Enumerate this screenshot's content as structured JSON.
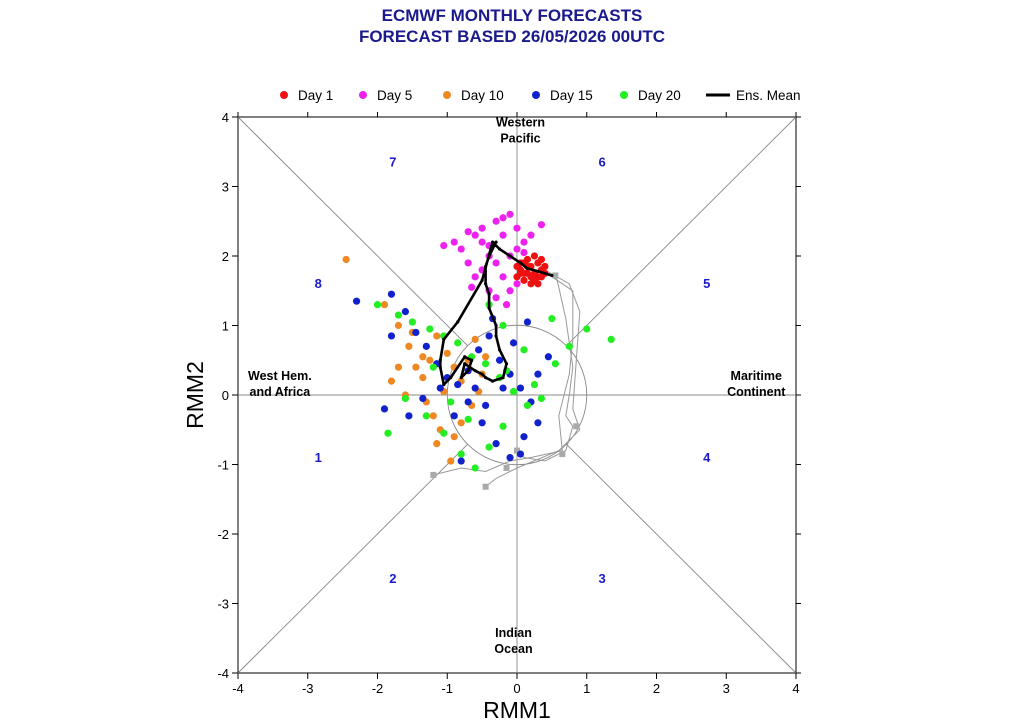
{
  "title_line1": "ECMWF MONTHLY FORECASTS",
  "title_line2": "FORECAST  BASED 26/05/2026 00UTC",
  "chart_data": {
    "type": "scatter",
    "xlabel": "RMM1",
    "ylabel": "RMM2",
    "xlim": [
      -4,
      4
    ],
    "ylim": [
      -4,
      4
    ],
    "xticks": [
      -4,
      -3,
      -2,
      -1,
      0,
      1,
      2,
      3,
      4
    ],
    "yticks": [
      -4,
      -3,
      -2,
      -1,
      0,
      1,
      2,
      3,
      4
    ],
    "phase_numbers": [
      {
        "label": "1",
        "x": -2.85,
        "y": -0.89
      },
      {
        "label": "2",
        "x": -1.78,
        "y": -2.63
      },
      {
        "label": "3",
        "x": 1.22,
        "y": -2.63
      },
      {
        "label": "4",
        "x": 2.72,
        "y": -0.89
      },
      {
        "label": "5",
        "x": 2.72,
        "y": 1.61
      },
      {
        "label": "6",
        "x": 1.22,
        "y": 3.36
      },
      {
        "label": "7",
        "x": -1.78,
        "y": 3.36
      },
      {
        "label": "8",
        "x": -2.85,
        "y": 1.61
      }
    ],
    "region_labels": [
      {
        "lines": [
          "Western",
          "Pacific"
        ],
        "x": 0.05,
        "y": 3.75
      },
      {
        "lines": [
          "Indian",
          "Ocean"
        ],
        "x": -0.05,
        "y": -3.6
      },
      {
        "lines": [
          "West Hem.",
          "and Africa"
        ],
        "x": -3.4,
        "y": 0.1
      },
      {
        "lines": [
          "Maritime",
          "Continent"
        ],
        "x": 3.43,
        "y": 0.1
      }
    ],
    "legend_position": "top",
    "legend": [
      {
        "name": "Day 1",
        "color": "#ee1111",
        "kind": "dot"
      },
      {
        "name": "Day 5",
        "color": "#ee22ee",
        "kind": "dot"
      },
      {
        "name": "Day 10",
        "color": "#ee8822",
        "kind": "dot"
      },
      {
        "name": "Day 15",
        "color": "#1122cc",
        "kind": "dot"
      },
      {
        "name": "Day 20",
        "color": "#22ee22",
        "kind": "dot"
      },
      {
        "name": "Ens. Mean",
        "color": "#000000",
        "kind": "line"
      }
    ],
    "series": [
      {
        "key": "day1",
        "color": "#ee1111",
        "points": [
          [
            0.0,
            1.7
          ],
          [
            0.05,
            1.8
          ],
          [
            0.1,
            1.9
          ],
          [
            0.15,
            1.75
          ],
          [
            0.2,
            1.85
          ],
          [
            0.25,
            2.0
          ],
          [
            0.3,
            1.9
          ],
          [
            0.35,
            1.8
          ],
          [
            0.1,
            1.65
          ],
          [
            0.2,
            1.6
          ],
          [
            0.3,
            1.7
          ],
          [
            0.4,
            1.75
          ],
          [
            0.15,
            1.95
          ],
          [
            0.25,
            1.75
          ],
          [
            0.05,
            1.9
          ],
          [
            0.35,
            1.95
          ],
          [
            0.2,
            1.7
          ],
          [
            0.0,
            1.85
          ],
          [
            0.1,
            1.75
          ],
          [
            0.3,
            1.6
          ],
          [
            0.4,
            1.85
          ],
          [
            0.25,
            1.65
          ],
          [
            0.15,
            1.85
          ],
          [
            0.35,
            1.7
          ],
          [
            0.05,
            1.75
          ]
        ]
      },
      {
        "key": "day5",
        "color": "#ee22ee",
        "points": [
          [
            -0.8,
            2.1
          ],
          [
            -0.6,
            2.3
          ],
          [
            -0.5,
            2.2
          ],
          [
            -0.3,
            2.5
          ],
          [
            -0.1,
            2.6
          ],
          [
            0.0,
            2.4
          ],
          [
            -0.2,
            2.3
          ],
          [
            -0.4,
            2.0
          ],
          [
            -0.7,
            1.9
          ],
          [
            -0.6,
            1.7
          ],
          [
            -0.5,
            1.8
          ],
          [
            -0.3,
            1.9
          ],
          [
            -0.1,
            2.0
          ],
          [
            0.1,
            2.2
          ],
          [
            0.2,
            2.3
          ],
          [
            0.35,
            2.45
          ],
          [
            0.0,
            2.1
          ],
          [
            -0.2,
            1.7
          ],
          [
            -0.4,
            1.5
          ],
          [
            -0.3,
            1.4
          ],
          [
            -0.1,
            1.5
          ],
          [
            0.0,
            1.6
          ],
          [
            -0.5,
            2.4
          ],
          [
            -0.9,
            2.2
          ],
          [
            -1.05,
            2.15
          ],
          [
            -0.7,
            2.35
          ],
          [
            -0.2,
            2.55
          ],
          [
            -0.4,
            2.15
          ],
          [
            0.1,
            2.05
          ],
          [
            -0.65,
            1.55
          ],
          [
            -0.15,
            1.3
          ]
        ]
      },
      {
        "key": "day10",
        "color": "#ee8822",
        "points": [
          [
            -2.45,
            1.95
          ],
          [
            -1.9,
            1.3
          ],
          [
            -1.7,
            1.0
          ],
          [
            -1.55,
            0.7
          ],
          [
            -1.45,
            0.4
          ],
          [
            -1.35,
            0.25
          ],
          [
            -1.25,
            0.5
          ],
          [
            -1.15,
            0.85
          ],
          [
            -1.0,
            0.6
          ],
          [
            -0.9,
            0.4
          ],
          [
            -0.8,
            0.2
          ],
          [
            -0.7,
            0.5
          ],
          [
            -0.6,
            0.8
          ],
          [
            -0.5,
            0.3
          ],
          [
            -1.8,
            0.2
          ],
          [
            -1.6,
            0.0
          ],
          [
            -1.2,
            -0.3
          ],
          [
            -1.1,
            -0.5
          ],
          [
            -0.9,
            -0.6
          ],
          [
            -0.8,
            -0.4
          ],
          [
            -1.3,
            -0.1
          ],
          [
            -1.5,
            0.9
          ],
          [
            -1.05,
            0.05
          ],
          [
            -0.55,
            0.05
          ],
          [
            -0.45,
            0.55
          ],
          [
            -1.7,
            0.4
          ],
          [
            -1.35,
            0.55
          ],
          [
            -1.15,
            -0.7
          ],
          [
            -0.95,
            -0.95
          ],
          [
            -0.65,
            -0.15
          ]
        ]
      },
      {
        "key": "day15",
        "color": "#1122cc",
        "points": [
          [
            -2.3,
            1.35
          ],
          [
            -1.8,
            1.45
          ],
          [
            -1.6,
            1.2
          ],
          [
            -1.45,
            0.9
          ],
          [
            -1.3,
            0.7
          ],
          [
            -1.15,
            0.45
          ],
          [
            -1.0,
            0.25
          ],
          [
            -0.85,
            0.15
          ],
          [
            -0.7,
            0.35
          ],
          [
            -0.55,
            0.65
          ],
          [
            -0.4,
            0.85
          ],
          [
            -0.25,
            0.5
          ],
          [
            -0.1,
            0.3
          ],
          [
            0.05,
            0.1
          ],
          [
            0.2,
            -0.1
          ],
          [
            0.3,
            -0.4
          ],
          [
            0.1,
            -0.6
          ],
          [
            -0.1,
            -0.9
          ],
          [
            -0.3,
            -0.7
          ],
          [
            -0.5,
            -0.4
          ],
          [
            -0.7,
            -0.1
          ],
          [
            -0.9,
            -0.3
          ],
          [
            -1.1,
            0.1
          ],
          [
            -1.35,
            -0.05
          ],
          [
            -1.55,
            -0.3
          ],
          [
            -1.9,
            -0.2
          ],
          [
            -0.6,
            0.1
          ],
          [
            -0.45,
            -0.15
          ],
          [
            -0.2,
            0.1
          ],
          [
            0.45,
            0.55
          ],
          [
            0.15,
            1.05
          ],
          [
            0.3,
            0.3
          ],
          [
            -0.35,
            1.1
          ],
          [
            -0.05,
            0.75
          ],
          [
            -1.8,
            0.85
          ],
          [
            -0.8,
            -0.95
          ],
          [
            0.05,
            -0.85
          ]
        ]
      },
      {
        "key": "day20",
        "color": "#22ee22",
        "points": [
          [
            -2.0,
            1.3
          ],
          [
            -1.7,
            1.15
          ],
          [
            -1.5,
            1.05
          ],
          [
            -1.25,
            0.95
          ],
          [
            -1.05,
            0.85
          ],
          [
            -0.85,
            0.75
          ],
          [
            -0.65,
            0.55
          ],
          [
            -0.45,
            0.45
          ],
          [
            -0.25,
            0.25
          ],
          [
            -0.05,
            0.05
          ],
          [
            0.15,
            -0.15
          ],
          [
            0.35,
            -0.05
          ],
          [
            0.55,
            0.45
          ],
          [
            0.75,
            0.7
          ],
          [
            1.0,
            0.95
          ],
          [
            1.35,
            0.8
          ],
          [
            -1.6,
            -0.05
          ],
          [
            -1.3,
            -0.3
          ],
          [
            -1.05,
            -0.55
          ],
          [
            -0.8,
            -0.85
          ],
          [
            -0.6,
            -1.05
          ],
          [
            -0.4,
            -0.75
          ],
          [
            -0.2,
            -0.45
          ],
          [
            -0.95,
            -0.1
          ],
          [
            -1.2,
            0.4
          ],
          [
            -0.4,
            1.3
          ],
          [
            -0.2,
            1.0
          ],
          [
            0.1,
            0.65
          ],
          [
            0.5,
            1.1
          ],
          [
            -1.85,
            -0.55
          ],
          [
            -0.7,
            -0.35
          ],
          [
            -0.15,
            0.35
          ],
          [
            0.25,
            0.15
          ]
        ]
      }
    ],
    "ens_mean": [
      [
        0.5,
        1.72
      ],
      [
        0.3,
        1.78
      ],
      [
        0.15,
        1.82
      ],
      [
        0.05,
        1.9
      ],
      [
        -0.1,
        2.0
      ],
      [
        -0.25,
        2.1
      ],
      [
        -0.35,
        2.2
      ],
      [
        -0.5,
        1.65
      ],
      [
        -0.85,
        1.05
      ],
      [
        -1.05,
        0.8
      ],
      [
        -1.1,
        0.5
      ],
      [
        -1.1,
        0.4
      ],
      [
        -1.05,
        0.15
      ],
      [
        -0.95,
        0.25
      ],
      [
        -0.75,
        0.55
      ],
      [
        -0.65,
        0.5
      ],
      [
        -0.7,
        0.35
      ],
      [
        -0.8,
        0.25
      ],
      [
        -0.75,
        0.45
      ],
      [
        -0.6,
        0.35
      ],
      [
        -0.5,
        0.3
      ],
      [
        -0.45,
        0.25
      ],
      [
        -0.35,
        0.2
      ],
      [
        -0.2,
        0.25
      ],
      [
        -0.15,
        0.45
      ],
      [
        -0.25,
        0.65
      ],
      [
        -0.3,
        0.85
      ],
      [
        -0.3,
        1.0
      ],
      [
        -0.4,
        1.25
      ],
      [
        -0.4,
        1.45
      ],
      [
        -0.45,
        1.6
      ],
      [
        -0.45,
        1.85
      ],
      [
        -0.4,
        2.0
      ],
      [
        -0.3,
        2.2
      ]
    ],
    "grey_tracks": [
      [
        [
          0.55,
          1.75
        ],
        [
          0.6,
          1.55
        ],
        [
          0.7,
          1.1
        ],
        [
          0.75,
          0.75
        ],
        [
          0.8,
          0.4
        ],
        [
          0.75,
          0.0
        ],
        [
          0.7,
          -0.3
        ],
        [
          0.8,
          -0.45
        ],
        [
          0.7,
          -0.8
        ],
        [
          0.4,
          -0.95
        ],
        [
          0.1,
          -0.9
        ],
        [
          0.0,
          -0.8
        ]
      ],
      [
        [
          0.5,
          1.7
        ],
        [
          0.8,
          1.5
        ],
        [
          0.8,
          0.8
        ],
        [
          0.75,
          0.3
        ],
        [
          0.6,
          -0.3
        ],
        [
          0.65,
          -0.8
        ],
        [
          0.2,
          -0.9
        ],
        [
          -0.1,
          -0.95
        ],
        [
          -0.45,
          -1.1
        ],
        [
          -0.8,
          -1.05
        ],
        [
          -1.2,
          -1.15
        ]
      ],
      [
        [
          0.4,
          1.8
        ],
        [
          0.75,
          1.6
        ],
        [
          0.9,
          1.2
        ],
        [
          0.85,
          0.5
        ],
        [
          0.8,
          -0.2
        ],
        [
          0.9,
          -0.5
        ],
        [
          0.6,
          -0.8
        ],
        [
          0.0,
          -1.05
        ],
        [
          -0.3,
          -1.2
        ],
        [
          -0.45,
          -1.32
        ]
      ]
    ],
    "grey_markers": [
      [
        0.55,
        1.72
      ],
      [
        0.85,
        -0.45
      ],
      [
        0.65,
        -0.85
      ],
      [
        0.0,
        -0.8
      ],
      [
        -0.15,
        -1.05
      ],
      [
        -1.2,
        -1.15
      ],
      [
        -0.45,
        -1.32
      ]
    ]
  }
}
